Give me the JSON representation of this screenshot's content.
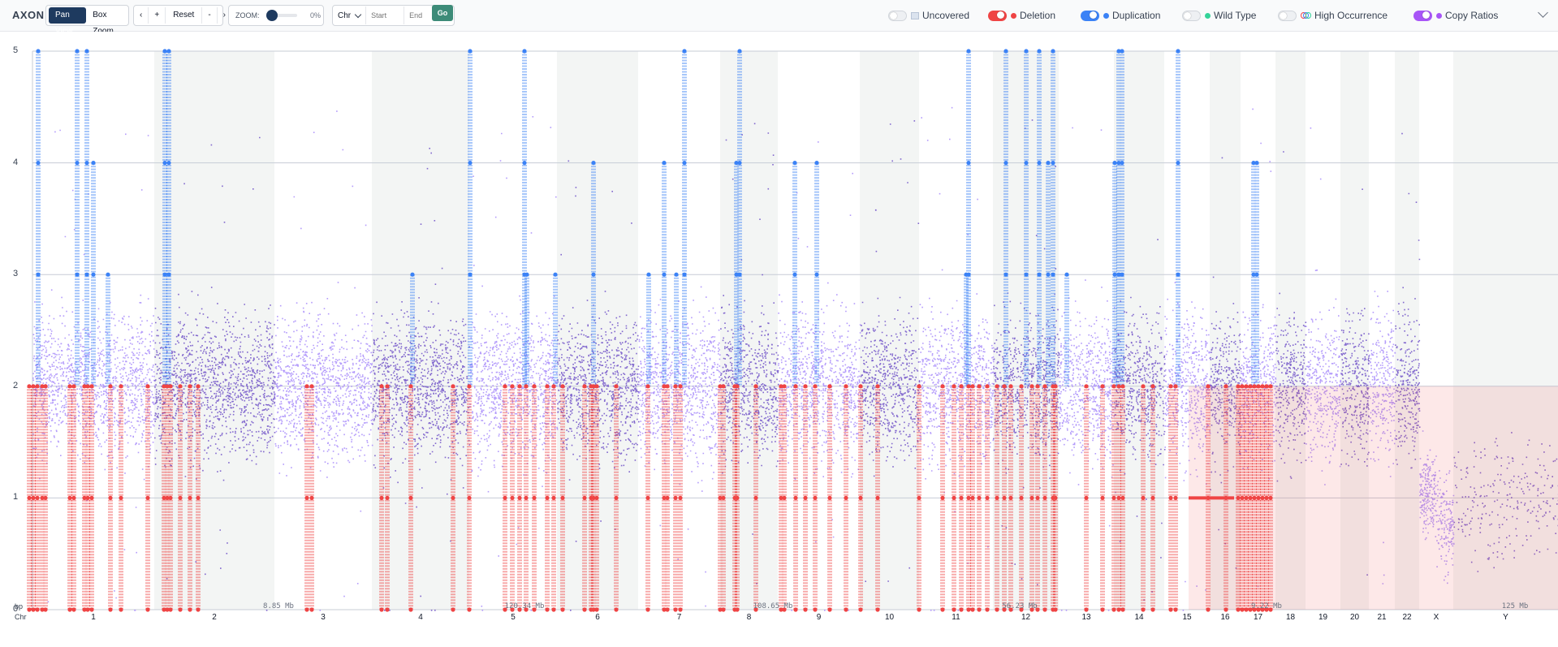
{
  "app": {
    "brand": "AXON"
  },
  "toolbar": {
    "pan_view": "Pan View",
    "box_zoom": "Box Zoom",
    "prev": "‹",
    "plus": "+",
    "reset": "Reset",
    "minus": "-",
    "next": "›",
    "zoom_label": "ZOOM:",
    "zoom_value": "0%",
    "zoom_level": 0,
    "chr_select": "Chr",
    "start_placeholder": "Start",
    "end_placeholder": "End",
    "go": "Go"
  },
  "legend": [
    {
      "label": "Uncovered",
      "on": false,
      "toggle_color": "#eef0f3",
      "swatch": "#dbe3ee",
      "icon": "uncovered-swatch-icon"
    },
    {
      "label": "Deletion",
      "on": true,
      "toggle_color": "#ef4444",
      "swatch": "#ef4444",
      "icon": "deletion-dot-icon"
    },
    {
      "label": "Duplication",
      "on": true,
      "toggle_color": "#3b82f6",
      "swatch": "#3b82f6",
      "icon": "duplication-dot-icon"
    },
    {
      "label": "Wild Type",
      "on": false,
      "toggle_color": "#eef0f3",
      "swatch": "#34d399",
      "icon": "wildtype-dot-icon"
    },
    {
      "label": "High Occurrence",
      "on": false,
      "toggle_color": "#eef0f3",
      "swatch": "#ef4444",
      "icon": "high-occurrence-icon"
    },
    {
      "label": "Copy Ratios",
      "on": true,
      "toggle_color": "#a855f7",
      "swatch": "#a855f7",
      "icon": "copy-ratios-dot-icon"
    }
  ],
  "colors": {
    "deletion": "#ef4444",
    "duplication": "#3b82f6",
    "copy_ratio_light": "#a78bfa",
    "copy_ratio_dark": "#6d4fc7",
    "band": "#f3f5f4"
  },
  "chart_data": {
    "type": "scatter",
    "title": "",
    "xlabel": "Chr",
    "ylabel": "",
    "ylim": [
      0,
      5
    ],
    "yticks": [
      0,
      1,
      2,
      3,
      4,
      5
    ],
    "grid": true,
    "x_row_label": "Chr",
    "bp_row_label": "bp",
    "chromosomes": [
      "1",
      "2",
      "3",
      "4",
      "5",
      "6",
      "7",
      "8",
      "9",
      "10",
      "11",
      "12",
      "13",
      "14",
      "15",
      "16",
      "17",
      "18",
      "19",
      "20",
      "21",
      "22",
      "X",
      "Y"
    ],
    "bp_labels": [
      "8.85 Mb",
      "120.34 Mb",
      "108.65 Mb",
      "56.23 Mb",
      "9.22 Mb",
      "125 Mb"
    ],
    "series": [
      {
        "name": "Copy Ratios",
        "y_center": 2,
        "y_spread": 0.6
      },
      {
        "name": "Duplication",
        "levels": [
          3,
          4,
          5
        ]
      },
      {
        "name": "Deletion",
        "levels": [
          0,
          1
        ]
      }
    ]
  }
}
